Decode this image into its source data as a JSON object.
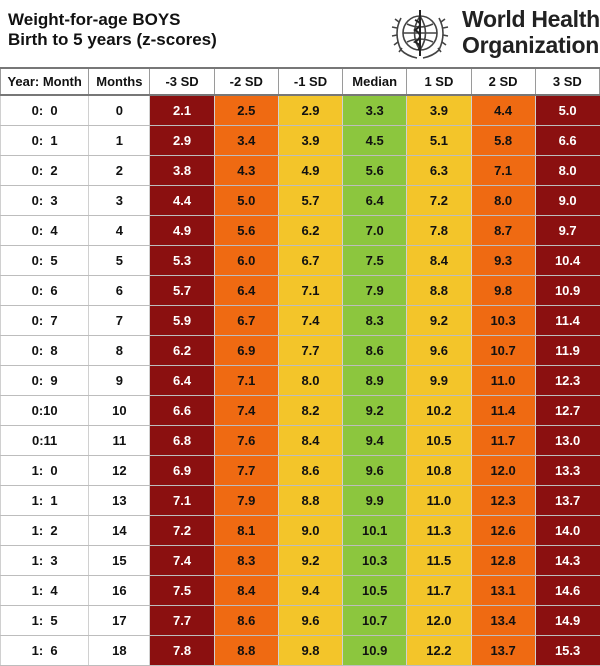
{
  "header": {
    "title_line1": "Weight-for-age  BOYS",
    "title_line2": "Birth to 5 years (z-scores)",
    "org_line1": "World Health",
    "org_line2": "Organization",
    "emblem_icon": "who-emblem-icon"
  },
  "colors": {
    "sd3": "#8b1010",
    "sd2": "#ef6a12",
    "sd1": "#f3c52a",
    "median": "#8cc63e"
  },
  "columns": [
    "Year: Month",
    "Months",
    "-3 SD",
    "-2 SD",
    "-1 SD",
    "Median",
    "1 SD",
    "2 SD",
    "3 SD"
  ],
  "rows": [
    [
      "0:  0",
      "0",
      "2.1",
      "2.5",
      "2.9",
      "3.3",
      "3.9",
      "4.4",
      "5.0"
    ],
    [
      "0:  1",
      "1",
      "2.9",
      "3.4",
      "3.9",
      "4.5",
      "5.1",
      "5.8",
      "6.6"
    ],
    [
      "0:  2",
      "2",
      "3.8",
      "4.3",
      "4.9",
      "5.6",
      "6.3",
      "7.1",
      "8.0"
    ],
    [
      "0:  3",
      "3",
      "4.4",
      "5.0",
      "5.7",
      "6.4",
      "7.2",
      "8.0",
      "9.0"
    ],
    [
      "0:  4",
      "4",
      "4.9",
      "5.6",
      "6.2",
      "7.0",
      "7.8",
      "8.7",
      "9.7"
    ],
    [
      "0:  5",
      "5",
      "5.3",
      "6.0",
      "6.7",
      "7.5",
      "8.4",
      "9.3",
      "10.4"
    ],
    [
      "0:  6",
      "6",
      "5.7",
      "6.4",
      "7.1",
      "7.9",
      "8.8",
      "9.8",
      "10.9"
    ],
    [
      "0:  7",
      "7",
      "5.9",
      "6.7",
      "7.4",
      "8.3",
      "9.2",
      "10.3",
      "11.4"
    ],
    [
      "0:  8",
      "8",
      "6.2",
      "6.9",
      "7.7",
      "8.6",
      "9.6",
      "10.7",
      "11.9"
    ],
    [
      "0:  9",
      "9",
      "6.4",
      "7.1",
      "8.0",
      "8.9",
      "9.9",
      "11.0",
      "12.3"
    ],
    [
      "0:10",
      "10",
      "6.6",
      "7.4",
      "8.2",
      "9.2",
      "10.2",
      "11.4",
      "12.7"
    ],
    [
      "0:11",
      "11",
      "6.8",
      "7.6",
      "8.4",
      "9.4",
      "10.5",
      "11.7",
      "13.0"
    ],
    [
      "1:  0",
      "12",
      "6.9",
      "7.7",
      "8.6",
      "9.6",
      "10.8",
      "12.0",
      "13.3"
    ],
    [
      "1:  1",
      "13",
      "7.1",
      "7.9",
      "8.8",
      "9.9",
      "11.0",
      "12.3",
      "13.7"
    ],
    [
      "1:  2",
      "14",
      "7.2",
      "8.1",
      "9.0",
      "10.1",
      "11.3",
      "12.6",
      "14.0"
    ],
    [
      "1:  3",
      "15",
      "7.4",
      "8.3",
      "9.2",
      "10.3",
      "11.5",
      "12.8",
      "14.3"
    ],
    [
      "1:  4",
      "16",
      "7.5",
      "8.4",
      "9.4",
      "10.5",
      "11.7",
      "13.1",
      "14.6"
    ],
    [
      "1:  5",
      "17",
      "7.7",
      "8.6",
      "9.6",
      "10.7",
      "12.0",
      "13.4",
      "14.9"
    ],
    [
      "1:  6",
      "18",
      "7.8",
      "8.8",
      "9.8",
      "10.9",
      "12.2",
      "13.7",
      "15.3"
    ]
  ]
}
